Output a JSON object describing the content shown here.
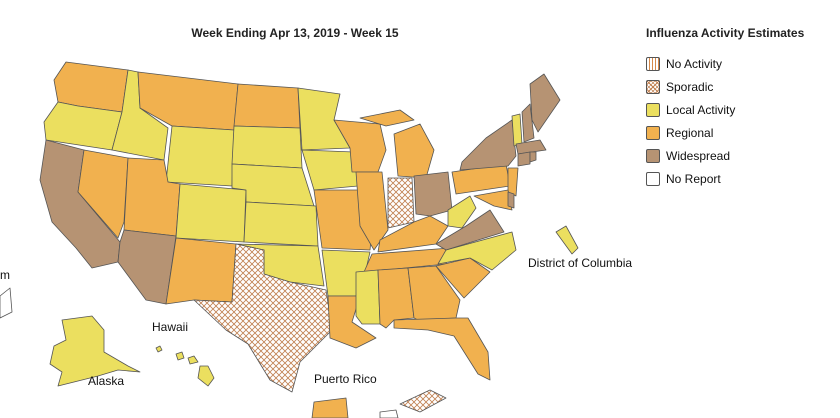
{
  "title": "Week Ending Apr 13, 2019 - Week 15",
  "legend": {
    "title": "Influenza Activity Estimates",
    "items": [
      {
        "label": "No Activity",
        "color": "#ffffff",
        "pattern": "lines"
      },
      {
        "label": "Sporadic",
        "color": "#ffffff",
        "pattern": "crosshatch"
      },
      {
        "label": "Local Activity",
        "color": "#ebdf5f"
      },
      {
        "label": "Regional",
        "color": "#f1b14f"
      },
      {
        "label": "Widespread",
        "color": "#b69373"
      },
      {
        "label": "No Report",
        "color": "#ffffff"
      }
    ]
  },
  "labels": {
    "dc": "District of Columbia",
    "hawaii": "Hawaii",
    "alaska": "Alaska",
    "puerto_rico": "Puerto Rico",
    "guam_partial": "m"
  },
  "colors": {
    "local": "#ebdf5f",
    "regional": "#f1b14f",
    "widespread": "#b69373",
    "sporadic_line": "#c08050",
    "border": "#555555"
  }
}
